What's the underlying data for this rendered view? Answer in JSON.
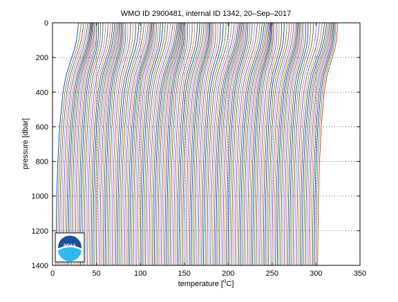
{
  "chart_data": {
    "type": "line",
    "title": "WMO ID 2900481, internal ID 1342, 20–Sep–2017",
    "xlabel_prefix": "temperature [",
    "xlabel_unit_sup": "o",
    "xlabel_unit": "C]",
    "ylabel": "pressure [dbar]",
    "xlim": [
      0,
      350
    ],
    "ylim": [
      0,
      1400
    ],
    "y_reversed": true,
    "xticks": [
      0,
      50,
      100,
      150,
      200,
      250,
      300,
      350
    ],
    "yticks": [
      0,
      200,
      400,
      600,
      800,
      1000,
      1200,
      1400
    ],
    "grid": "dotted",
    "profile_offset_step": 2,
    "profile_count": 150,
    "series_colors": [
      "#0000ff",
      "#00aa00",
      "#ff0000",
      "#00cccc",
      "#cc00cc",
      "#999900",
      "#333333"
    ],
    "logo": {
      "icon": "noaa-logo-icon",
      "text": "NOAA",
      "position": "bottom-left"
    },
    "profiles": [
      {
        "offset": 0,
        "points": [
          [
            0,
            27.5
          ],
          [
            50,
            27.0
          ],
          [
            100,
            26.0
          ],
          [
            150,
            24.0
          ],
          [
            200,
            21.0
          ],
          [
            300,
            15.0
          ],
          [
            400,
            11.5
          ],
          [
            600,
            8.0
          ],
          [
            800,
            6.0
          ],
          [
            1000,
            4.8
          ],
          [
            1200,
            4.2
          ],
          [
            1400,
            3.8
          ]
        ]
      }
    ]
  }
}
